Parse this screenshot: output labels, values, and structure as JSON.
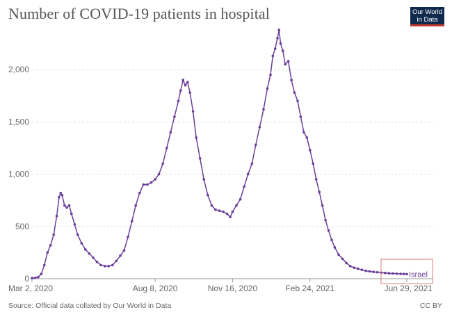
{
  "header": {
    "title": "Number of COVID-19 patients in hospital",
    "logo_line1": "Our World",
    "logo_line2": "in Data"
  },
  "footer": {
    "source": "Source: Official data collated by Our World in Data",
    "license": "CC BY"
  },
  "colors": {
    "series": "#6a3d9a",
    "grid": "#dddddd",
    "axis_text": "#666666",
    "highlight_box": "#e07b7b"
  },
  "chart_data": {
    "type": "line",
    "title": "Number of COVID-19 patients in hospital",
    "xlabel": "",
    "ylabel": "",
    "ylim": [
      0,
      2400
    ],
    "xlim": [
      "2020-03-02",
      "2021-06-29"
    ],
    "grid": "horizontal dashed",
    "x_ticks": [
      {
        "date": "2020-03-02",
        "label": "Mar 2, 2020"
      },
      {
        "date": "2020-08-08",
        "label": "Aug 8, 2020"
      },
      {
        "date": "2020-11-16",
        "label": "Nov 16, 2020"
      },
      {
        "date": "2021-02-24",
        "label": "Feb 24, 2021"
      },
      {
        "date": "2021-06-29",
        "label": "Jun 29, 2021"
      }
    ],
    "y_ticks": [
      {
        "value": 0,
        "label": "0"
      },
      {
        "value": 500,
        "label": "500"
      },
      {
        "value": 1000,
        "label": "1,000"
      },
      {
        "value": 1500,
        "label": "1,500"
      },
      {
        "value": 2000,
        "label": "2,000"
      }
    ],
    "series": [
      {
        "name": "Israel",
        "points": [
          [
            "2020-03-02",
            5
          ],
          [
            "2020-03-06",
            8
          ],
          [
            "2020-03-10",
            15
          ],
          [
            "2020-03-14",
            45
          ],
          [
            "2020-03-18",
            130
          ],
          [
            "2020-03-22",
            250
          ],
          [
            "2020-03-26",
            320
          ],
          [
            "2020-03-30",
            420
          ],
          [
            "2020-04-03",
            600
          ],
          [
            "2020-04-06",
            780
          ],
          [
            "2020-04-08",
            820
          ],
          [
            "2020-04-10",
            800
          ],
          [
            "2020-04-13",
            700
          ],
          [
            "2020-04-16",
            680
          ],
          [
            "2020-04-19",
            700
          ],
          [
            "2020-04-22",
            620
          ],
          [
            "2020-04-26",
            520
          ],
          [
            "2020-04-30",
            420
          ],
          [
            "2020-05-05",
            340
          ],
          [
            "2020-05-10",
            280
          ],
          [
            "2020-05-15",
            240
          ],
          [
            "2020-05-20",
            200
          ],
          [
            "2020-05-25",
            160
          ],
          [
            "2020-05-30",
            130
          ],
          [
            "2020-06-04",
            120
          ],
          [
            "2020-06-09",
            120
          ],
          [
            "2020-06-14",
            130
          ],
          [
            "2020-06-19",
            170
          ],
          [
            "2020-06-24",
            220
          ],
          [
            "2020-06-29",
            270
          ],
          [
            "2020-07-04",
            400
          ],
          [
            "2020-07-09",
            550
          ],
          [
            "2020-07-14",
            700
          ],
          [
            "2020-07-19",
            820
          ],
          [
            "2020-07-24",
            900
          ],
          [
            "2020-07-29",
            900
          ],
          [
            "2020-08-03",
            920
          ],
          [
            "2020-08-08",
            950
          ],
          [
            "2020-08-13",
            1000
          ],
          [
            "2020-08-18",
            1100
          ],
          [
            "2020-08-23",
            1250
          ],
          [
            "2020-08-28",
            1400
          ],
          [
            "2020-09-02",
            1550
          ],
          [
            "2020-09-07",
            1700
          ],
          [
            "2020-09-10",
            1800
          ],
          [
            "2020-09-13",
            1900
          ],
          [
            "2020-09-16",
            1850
          ],
          [
            "2020-09-19",
            1880
          ],
          [
            "2020-09-22",
            1780
          ],
          [
            "2020-09-26",
            1600
          ],
          [
            "2020-09-30",
            1350
          ],
          [
            "2020-10-05",
            1150
          ],
          [
            "2020-10-10",
            950
          ],
          [
            "2020-10-15",
            800
          ],
          [
            "2020-10-20",
            700
          ],
          [
            "2020-10-25",
            660
          ],
          [
            "2020-10-30",
            650
          ],
          [
            "2020-11-04",
            640
          ],
          [
            "2020-11-09",
            620
          ],
          [
            "2020-11-13",
            590
          ],
          [
            "2020-11-16",
            640
          ],
          [
            "2020-11-21",
            700
          ],
          [
            "2020-11-26",
            760
          ],
          [
            "2020-12-01",
            880
          ],
          [
            "2020-12-06",
            1000
          ],
          [
            "2020-12-11",
            1100
          ],
          [
            "2020-12-16",
            1280
          ],
          [
            "2020-12-21",
            1450
          ],
          [
            "2020-12-26",
            1620
          ],
          [
            "2020-12-31",
            1820
          ],
          [
            "2021-01-04",
            1950
          ],
          [
            "2021-01-07",
            2130
          ],
          [
            "2021-01-10",
            2200
          ],
          [
            "2021-01-13",
            2300
          ],
          [
            "2021-01-15",
            2380
          ],
          [
            "2021-01-17",
            2250
          ],
          [
            "2021-01-20",
            2180
          ],
          [
            "2021-01-23",
            2050
          ],
          [
            "2021-01-27",
            2080
          ],
          [
            "2021-01-31",
            1900
          ],
          [
            "2021-02-04",
            1780
          ],
          [
            "2021-02-08",
            1700
          ],
          [
            "2021-02-12",
            1550
          ],
          [
            "2021-02-16",
            1400
          ],
          [
            "2021-02-20",
            1350
          ],
          [
            "2021-02-24",
            1230
          ],
          [
            "2021-02-28",
            1100
          ],
          [
            "2021-03-04",
            950
          ],
          [
            "2021-03-08",
            830
          ],
          [
            "2021-03-12",
            700
          ],
          [
            "2021-03-16",
            560
          ],
          [
            "2021-03-20",
            460
          ],
          [
            "2021-03-24",
            370
          ],
          [
            "2021-03-28",
            300
          ],
          [
            "2021-04-02",
            230
          ],
          [
            "2021-04-07",
            190
          ],
          [
            "2021-04-12",
            150
          ],
          [
            "2021-04-17",
            120
          ],
          [
            "2021-04-22",
            105
          ],
          [
            "2021-04-27",
            95
          ],
          [
            "2021-05-02",
            85
          ],
          [
            "2021-05-07",
            75
          ],
          [
            "2021-05-12",
            70
          ],
          [
            "2021-05-17",
            65
          ],
          [
            "2021-05-22",
            62
          ],
          [
            "2021-05-27",
            58
          ],
          [
            "2021-06-01",
            55
          ],
          [
            "2021-06-06",
            52
          ],
          [
            "2021-06-11",
            50
          ],
          [
            "2021-06-16",
            48
          ],
          [
            "2021-06-21",
            46
          ],
          [
            "2021-06-25",
            45
          ],
          [
            "2021-06-29",
            44
          ]
        ]
      }
    ]
  }
}
